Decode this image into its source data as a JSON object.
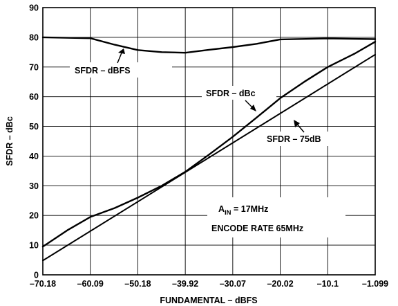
{
  "chart_data": {
    "type": "line",
    "xlabel": "FUNDAMENTAL – dBFS",
    "ylabel": "SFDR – dBc",
    "ylim": [
      0,
      90
    ],
    "y_ticks": [
      0,
      10,
      20,
      30,
      40,
      50,
      60,
      70,
      80,
      90
    ],
    "x_ticks": [
      "–70.18",
      "–60.09",
      "–50.18",
      "–39.92",
      "–30.07",
      "–20.02",
      "–10.1",
      "–1.099"
    ],
    "xlim": [
      -70.18,
      -1.099
    ],
    "grid": true,
    "series": [
      {
        "name": "SFDR – dBFS",
        "x": [
          -70.18,
          -60.09,
          -55.0,
          -50.18,
          -45.0,
          -39.92,
          -35.0,
          -30.07,
          -25.0,
          -20.02,
          -10.1,
          -1.099
        ],
        "y": [
          80,
          79.7,
          77.5,
          75.7,
          75.0,
          74.8,
          75.8,
          76.7,
          77.8,
          79.3,
          79.6,
          79.4
        ]
      },
      {
        "name": "SFDR – dBc",
        "x": [
          -70.18,
          -65.0,
          -60.09,
          -55.0,
          -50.18,
          -45.0,
          -39.92,
          -35.0,
          -30.07,
          -25.0,
          -20.02,
          -15.0,
          -10.1,
          -5.0,
          -1.099
        ],
        "y": [
          9.5,
          15.0,
          19.5,
          22.5,
          26.0,
          30.0,
          34.7,
          40.5,
          46.5,
          53.0,
          59.5,
          65.0,
          70.0,
          74.5,
          78.5
        ]
      },
      {
        "name": "SFDR – 75dB",
        "x": [
          -70.18,
          -1.099
        ],
        "y": [
          4.8,
          74.2
        ]
      }
    ],
    "annotations": {
      "dbfs_label": "SFDR – dBFS",
      "dbc_label": "SFDR – dBc",
      "db75_label": "SFDR – 75dB",
      "ain_main": "A",
      "ain_sub": "IN",
      "ain_value": " = 17MHz",
      "encode_rate": "ENCODE RATE 65MHz"
    }
  }
}
